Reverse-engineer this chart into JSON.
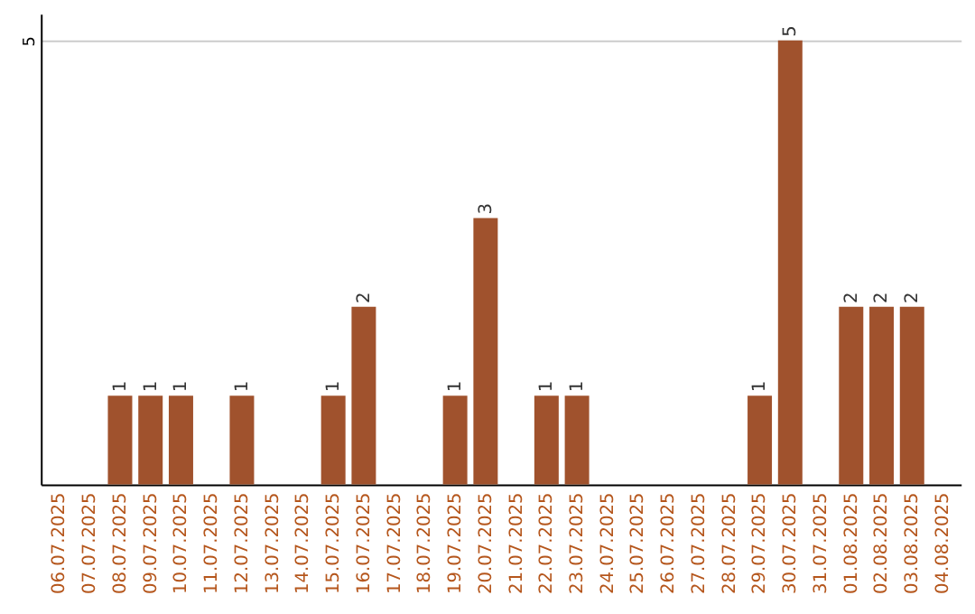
{
  "chart_data": {
    "type": "bar",
    "categories": [
      "06.07.2025",
      "07.07.2025",
      "08.07.2025",
      "09.07.2025",
      "10.07.2025",
      "11.07.2025",
      "12.07.2025",
      "13.07.2025",
      "14.07.2025",
      "15.07.2025",
      "16.07.2025",
      "17.07.2025",
      "18.07.2025",
      "19.07.2025",
      "20.07.2025",
      "21.07.2025",
      "22.07.2025",
      "23.07.2025",
      "24.07.2025",
      "25.07.2025",
      "26.07.2025",
      "27.07.2025",
      "28.07.2025",
      "29.07.2025",
      "30.07.2025",
      "31.07.2025",
      "01.08.2025",
      "02.08.2025",
      "03.08.2025",
      "04.08.2025"
    ],
    "values": [
      0,
      0,
      1,
      1,
      1,
      0,
      1,
      0,
      0,
      1,
      2,
      0,
      0,
      1,
      3,
      0,
      1,
      1,
      0,
      0,
      0,
      0,
      0,
      1,
      5,
      0,
      2,
      2,
      2,
      0
    ],
    "value_labels": [
      null,
      null,
      "1",
      "1",
      "1",
      null,
      "1",
      null,
      null,
      "1",
      "2",
      null,
      null,
      "1",
      "3",
      null,
      "1",
      "1",
      null,
      null,
      null,
      null,
      null,
      "1",
      "5",
      null,
      "2",
      "2",
      "2",
      null
    ],
    "color": "#a0522d",
    "ylim": [
      0,
      5.3
    ],
    "yticks": [
      5
    ],
    "grid": "y"
  }
}
